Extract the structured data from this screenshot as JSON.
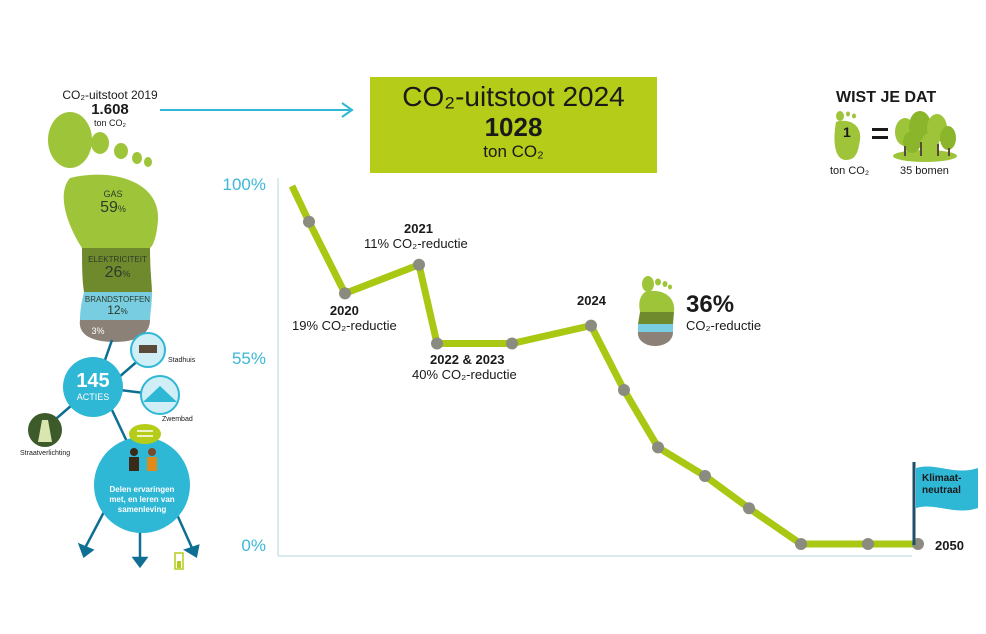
{
  "colors": {
    "line": "#a8c813",
    "marker": "#8b8b80",
    "banner": "#b5cc18",
    "tick": "#3bb8d4",
    "flag": "#2fb7d6",
    "arrow": "#2fb7d6",
    "gas": "#9ec53a",
    "elec": "#6f8a2c",
    "fuel": "#78cde0",
    "other": "#8b8177"
  },
  "left": {
    "emission_label": "CO₂-uitstoot 2019",
    "emission_value": "1.608",
    "emission_unit": "ton CO₂",
    "gas_label": "GAS",
    "gas_value": "59",
    "gas_pct": "%",
    "elec_label": "ELEKTRICITEIT",
    "elec_value": "26",
    "elec_pct": "%",
    "fuel_label": "BRANDSTOFFEN",
    "fuel_value": "12",
    "fuel_pct": "%",
    "other_value": "3%",
    "actions_value": "145",
    "actions_label": "ACTIES",
    "stadhuis": "Stadhuis",
    "zwembad": "Zwembad",
    "straatverlichting": "Straatverlichting",
    "community_text": "Delen ervaringen met, en leren van samenleving"
  },
  "banner": {
    "title": "CO₂-uitstoot 2024",
    "value": "1028",
    "unit": "ton CO₂"
  },
  "wist": {
    "title": "WIST JE DAT",
    "number": "1",
    "equals": "=",
    "left_caption": "ton CO₂",
    "right_caption": "35 bomen"
  },
  "reduction_total": {
    "value": "36%",
    "label": "CO₂-reductie"
  },
  "flag_label": "Klimaat-neutraal",
  "chart_data": {
    "type": "line",
    "y_ticks": [
      "100%",
      "55%",
      "0%"
    ],
    "ylim": [
      0,
      100
    ],
    "points": [
      {
        "x": 0,
        "y": 100
      },
      {
        "x": 1,
        "y": 90
      },
      {
        "x": 2,
        "y": 70
      },
      {
        "x": 3,
        "y": 78
      },
      {
        "x": 4,
        "y": 56
      },
      {
        "x": 5,
        "y": 56
      },
      {
        "x": 6,
        "y": 61
      },
      {
        "x": 7,
        "y": 43
      },
      {
        "x": 8,
        "y": 27
      },
      {
        "x": 9,
        "y": 19
      },
      {
        "x": 10,
        "y": 10
      },
      {
        "x": 11,
        "y": 0
      },
      {
        "x": 12,
        "y": 0
      },
      {
        "x": 13,
        "y": 0
      }
    ],
    "markers": [
      1,
      2,
      3,
      4,
      5,
      6,
      7,
      8,
      9,
      10,
      11,
      12,
      13
    ],
    "annotations": [
      {
        "year": "2020",
        "text": "19% CO₂-reductie"
      },
      {
        "year": "2021",
        "text": "11% CO₂-reductie"
      },
      {
        "year": "2022 & 2023",
        "text": "40% CO₂-reductie"
      },
      {
        "year": "2024",
        "text": ""
      },
      {
        "year": "2050",
        "text": ""
      }
    ]
  }
}
